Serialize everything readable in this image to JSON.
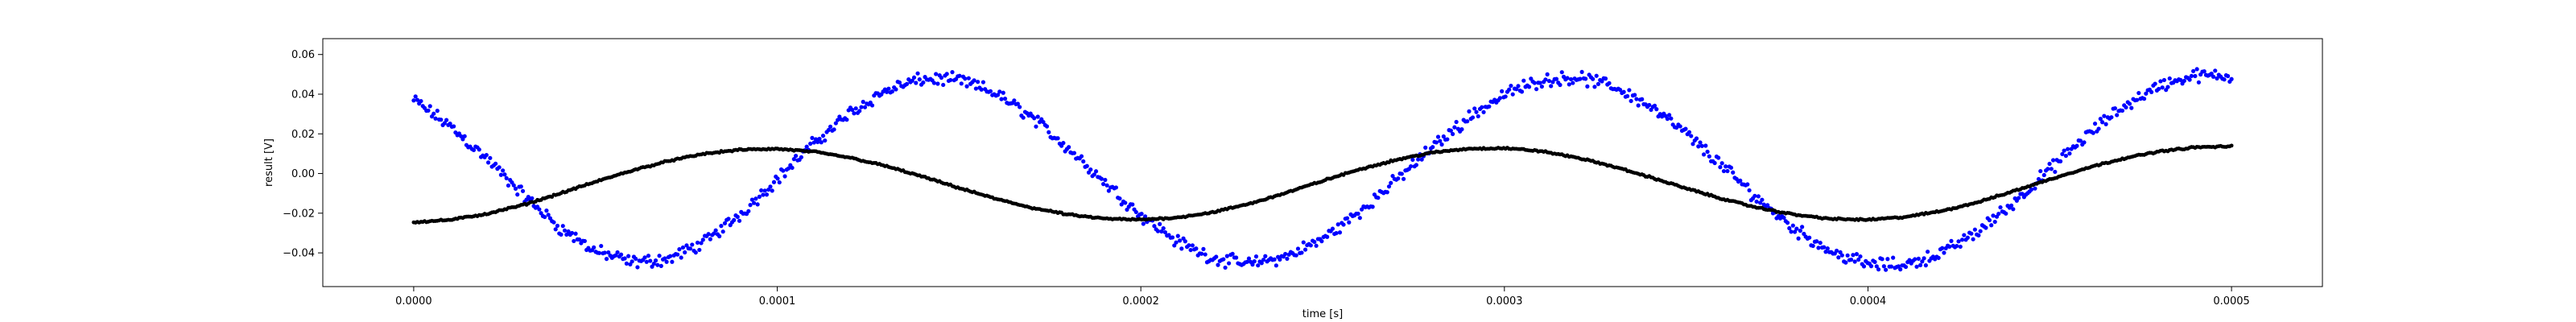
{
  "chart_data": {
    "type": "scatter",
    "xlabel": "time [s]",
    "ylabel": "result [V]",
    "xlim": [
      -2.5e-05,
      0.000525
    ],
    "ylim": [
      -0.057,
      0.068
    ],
    "xticks": [
      {
        "value": 0.0,
        "label": "0.0000"
      },
      {
        "value": 0.0001,
        "label": "0.0001"
      },
      {
        "value": 0.0002,
        "label": "0.0002"
      },
      {
        "value": 0.0003,
        "label": "0.0003"
      },
      {
        "value": 0.0004,
        "label": "0.0004"
      },
      {
        "value": 0.0005,
        "label": "0.0005"
      }
    ],
    "yticks": [
      {
        "value": -0.04,
        "label": "−0.04"
      },
      {
        "value": -0.02,
        "label": "−0.02"
      },
      {
        "value": 0.0,
        "label": "0.00"
      },
      {
        "value": 0.02,
        "label": "0.02"
      },
      {
        "value": 0.04,
        "label": "0.04"
      },
      {
        "value": 0.06,
        "label": "0.06"
      }
    ],
    "grid": false,
    "series": [
      {
        "color": "#0000ff",
        "marker": "dot",
        "x": [
          0.0,
          1e-05,
          2e-05,
          3e-05,
          4e-05,
          5e-05,
          6e-05,
          7e-05,
          8e-05,
          9e-05,
          0.0001,
          0.00011,
          0.00012,
          0.00013,
          0.00014,
          0.00015,
          0.00016,
          0.00017,
          0.00018,
          0.00019,
          0.0002,
          0.00021,
          0.00022,
          0.00023,
          0.00024,
          0.00025,
          0.00026,
          0.00027,
          0.00028,
          0.00029,
          0.0003,
          0.00031,
          0.00032,
          0.00033,
          0.00034,
          0.00035,
          0.00036,
          0.00037,
          0.00038,
          0.00039,
          0.0004,
          0.00041,
          0.00042,
          0.00043,
          0.00044,
          0.00045,
          0.00046,
          0.00047,
          0.00048,
          0.00049,
          0.0005
        ],
        "y": [
          0.037,
          0.0239,
          0.0076,
          -0.0106,
          -0.0271,
          -0.0391,
          -0.0448,
          -0.0432,
          -0.0346,
          -0.0202,
          -0.0027,
          0.0151,
          0.0306,
          0.0419,
          0.0477,
          0.0472,
          0.0405,
          0.0285,
          0.0129,
          -0.0043,
          -0.0208,
          -0.0342,
          -0.0428,
          -0.0455,
          -0.042,
          -0.033,
          -0.0196,
          -0.0037,
          0.0129,
          0.0281,
          0.0399,
          0.047,
          0.0485,
          0.044,
          0.0341,
          0.0201,
          0.0037,
          -0.0131,
          -0.0282,
          -0.0395,
          -0.0458,
          -0.0461,
          -0.0404,
          -0.0295,
          -0.0148,
          0.002,
          0.0187,
          0.0335,
          0.0442,
          0.0495,
          0.0487
        ],
        "spread": 0.004
      },
      {
        "color": "#000000",
        "marker": "dot",
        "x": [
          0.0,
          1e-05,
          2e-05,
          3e-05,
          4e-05,
          5e-05,
          6e-05,
          7e-05,
          8e-05,
          9e-05,
          0.0001,
          0.00011,
          0.00012,
          0.00013,
          0.00014,
          0.00015,
          0.00016,
          0.00017,
          0.00018,
          0.00019,
          0.0002,
          0.00021,
          0.00022,
          0.00023,
          0.00024,
          0.00025,
          0.00026,
          0.00027,
          0.00028,
          0.00029,
          0.0003,
          0.00031,
          0.00032,
          0.00033,
          0.00034,
          0.00035,
          0.00036,
          0.00037,
          0.00038,
          0.00039,
          0.0004,
          0.00041,
          0.00042,
          0.00043,
          0.00044,
          0.00045,
          0.00046,
          0.00047,
          0.00048,
          0.00049,
          0.0005
        ],
        "y": [
          -0.0245,
          -0.0234,
          -0.0204,
          -0.0159,
          -0.0102,
          -0.0042,
          0.0015,
          0.0063,
          0.01,
          0.012,
          0.0124,
          0.011,
          0.008,
          0.0037,
          -0.0016,
          -0.0073,
          -0.0127,
          -0.0173,
          -0.0207,
          -0.0228,
          -0.0233,
          -0.0222,
          -0.0195,
          -0.0152,
          -0.0097,
          -0.0037,
          0.002,
          0.0068,
          0.0105,
          0.0125,
          0.0128,
          0.0113,
          0.008,
          0.0035,
          -0.0018,
          -0.0075,
          -0.0128,
          -0.0174,
          -0.0208,
          -0.0229,
          -0.0233,
          -0.022,
          -0.019,
          -0.0146,
          -0.0089,
          -0.003,
          0.0027,
          0.0075,
          0.0111,
          0.0132,
          0.0137
        ],
        "spread": 0.0005
      }
    ]
  }
}
